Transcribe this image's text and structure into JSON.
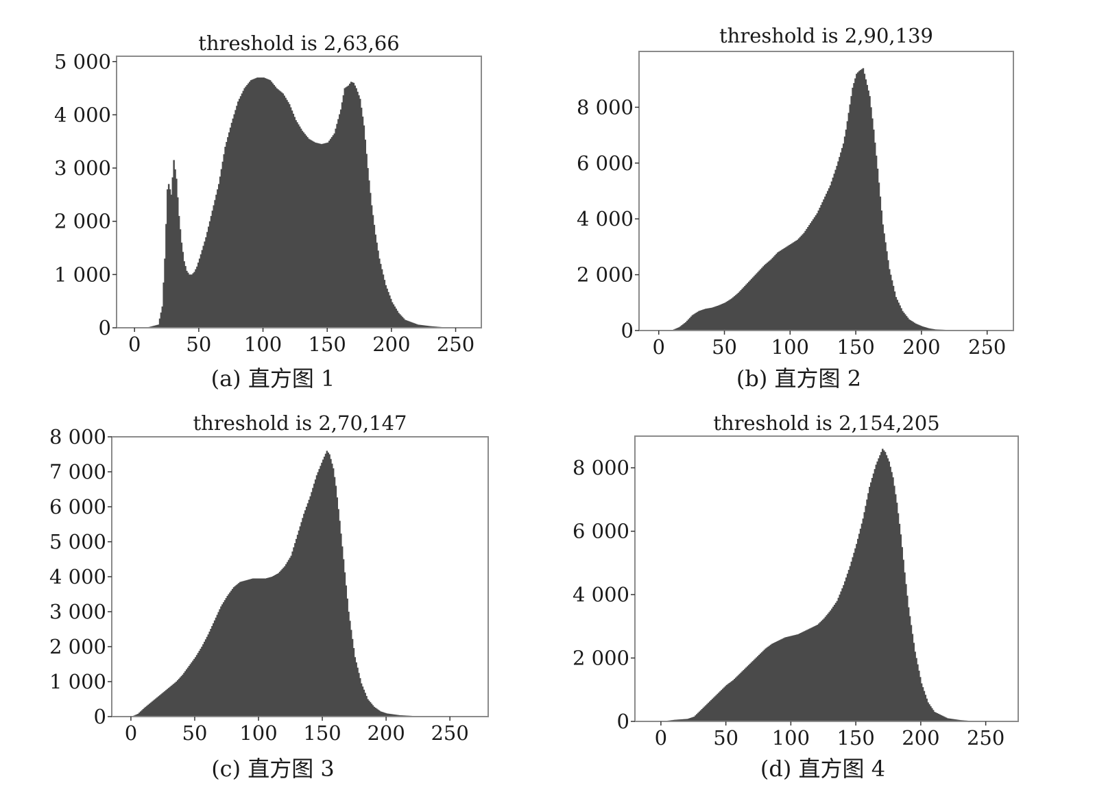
{
  "figure": {
    "bar_color": "#4a4a4a",
    "frame_color": "#8a8a8a"
  },
  "chart_data": [
    {
      "type": "bar",
      "title": "threshold is 2,63,66",
      "caption": "(a) 直方图 1",
      "xlabel": "",
      "ylabel": "",
      "xlim": [
        -14,
        270
      ],
      "ylim": [
        0,
        5100
      ],
      "xticks": [
        0,
        50,
        100,
        150,
        200,
        250
      ],
      "xtick_labels": [
        "0",
        "50",
        "100",
        "150",
        "200",
        "250"
      ],
      "yticks": [
        0,
        1000,
        2000,
        3000,
        4000,
        5000
      ],
      "ytick_labels": [
        "0",
        "1 000",
        "2 000",
        "3 000",
        "4 000",
        "5 000"
      ],
      "grid": false,
      "legend": "none",
      "bin_width": 1,
      "x": [
        0,
        10,
        18,
        21,
        23,
        25,
        26,
        28,
        30,
        32,
        34,
        36,
        38,
        40,
        42,
        44,
        46,
        48,
        50,
        55,
        60,
        65,
        70,
        75,
        80,
        85,
        90,
        95,
        100,
        105,
        110,
        115,
        120,
        125,
        130,
        135,
        140,
        145,
        150,
        155,
        160,
        163,
        166,
        168,
        170,
        172,
        175,
        178,
        181,
        184,
        187,
        190,
        195,
        200,
        205,
        210,
        220,
        230,
        240,
        250,
        255
      ],
      "values": [
        0,
        10,
        60,
        400,
        1300,
        2600,
        2700,
        2500,
        3150,
        2800,
        2100,
        1600,
        1250,
        1070,
        1000,
        1000,
        1050,
        1150,
        1300,
        1700,
        2200,
        2700,
        3400,
        3850,
        4250,
        4500,
        4650,
        4700,
        4700,
        4650,
        4500,
        4400,
        4200,
        3900,
        3700,
        3550,
        3480,
        3450,
        3480,
        3650,
        4100,
        4500,
        4550,
        4620,
        4600,
        4500,
        4300,
        3800,
        3000,
        2300,
        1750,
        1300,
        800,
        480,
        280,
        150,
        60,
        30,
        10,
        5,
        0
      ]
    },
    {
      "type": "bar",
      "title": "threshold is 2,90,139",
      "caption": "(b) 直方图 2",
      "xlabel": "",
      "ylabel": "",
      "xlim": [
        -15,
        270
      ],
      "ylim": [
        0,
        10000
      ],
      "xticks": [
        0,
        50,
        100,
        150,
        200,
        250
      ],
      "xtick_labels": [
        "0",
        "50",
        "100",
        "150",
        "200",
        "250"
      ],
      "yticks": [
        0,
        2000,
        4000,
        6000,
        8000
      ],
      "ytick_labels": [
        "0",
        "2 000",
        "4 000",
        "6 000",
        "8 000"
      ],
      "grid": false,
      "legend": "none",
      "bin_width": 1,
      "x": [
        0,
        10,
        15,
        20,
        25,
        30,
        35,
        40,
        45,
        50,
        55,
        60,
        65,
        70,
        75,
        80,
        85,
        90,
        95,
        100,
        105,
        110,
        115,
        120,
        125,
        130,
        135,
        140,
        142,
        145,
        147,
        150,
        152,
        155,
        157,
        160,
        163,
        166,
        170,
        175,
        180,
        185,
        190,
        195,
        200,
        205,
        210,
        220,
        230,
        240,
        255
      ],
      "values": [
        0,
        20,
        120,
        300,
        550,
        700,
        780,
        820,
        900,
        1000,
        1150,
        1350,
        1600,
        1850,
        2100,
        2350,
        2550,
        2800,
        2950,
        3100,
        3250,
        3500,
        3850,
        4200,
        4700,
        5200,
        5900,
        6700,
        7200,
        8100,
        8700,
        9200,
        9300,
        9400,
        9000,
        8400,
        7200,
        5800,
        3800,
        2200,
        1200,
        700,
        400,
        250,
        150,
        80,
        40,
        20,
        10,
        0,
        0
      ]
    },
    {
      "type": "bar",
      "title": "threshold is 2,70,147",
      "caption": "(c) 直方图 3",
      "xlabel": "",
      "ylabel": "",
      "xlim": [
        -15,
        280
      ],
      "ylim": [
        0,
        8000
      ],
      "xticks": [
        0,
        50,
        100,
        150,
        200,
        250
      ],
      "xtick_labels": [
        "0",
        "50",
        "100",
        "150",
        "200",
        "250"
      ],
      "yticks": [
        0,
        1000,
        2000,
        3000,
        4000,
        5000,
        6000,
        7000,
        8000
      ],
      "ytick_labels": [
        "0",
        "1 000",
        "2 000",
        "3 000",
        "4 000",
        "5 000",
        "6 000",
        "7 000",
        "8 000"
      ],
      "grid": false,
      "legend": "none",
      "bin_width": 1,
      "x": [
        0,
        5,
        10,
        15,
        20,
        25,
        30,
        35,
        40,
        45,
        50,
        55,
        60,
        65,
        70,
        75,
        80,
        85,
        90,
        95,
        100,
        105,
        110,
        115,
        120,
        125,
        130,
        135,
        140,
        145,
        150,
        153,
        155,
        158,
        160,
        163,
        166,
        170,
        175,
        180,
        185,
        190,
        195,
        200,
        210,
        220,
        230,
        240,
        255
      ],
      "values": [
        0,
        80,
        250,
        400,
        550,
        700,
        850,
        1000,
        1200,
        1450,
        1700,
        2000,
        2350,
        2750,
        3150,
        3450,
        3700,
        3850,
        3900,
        3950,
        3950,
        3950,
        4000,
        4100,
        4300,
        4600,
        5200,
        5800,
        6300,
        6900,
        7350,
        7600,
        7500,
        7100,
        6600,
        5600,
        4500,
        3000,
        1700,
        950,
        500,
        280,
        150,
        90,
        40,
        20,
        10,
        5,
        0
      ]
    },
    {
      "type": "bar",
      "title": "threshold is 2,154,205",
      "caption": "(d) 直方图 4",
      "xlabel": "",
      "ylabel": "",
      "xlim": [
        -20,
        275
      ],
      "ylim": [
        0,
        9000
      ],
      "xticks": [
        0,
        50,
        100,
        150,
        200,
        250
      ],
      "xtick_labels": [
        "0",
        "50",
        "100",
        "150",
        "200",
        "250"
      ],
      "yticks": [
        0,
        2000,
        4000,
        6000,
        8000
      ],
      "ytick_labels": [
        "0",
        "2 000",
        "4 000",
        "6 000",
        "8 000"
      ],
      "grid": false,
      "legend": "none",
      "bin_width": 1,
      "x": [
        0,
        10,
        20,
        25,
        30,
        35,
        40,
        45,
        50,
        55,
        60,
        65,
        70,
        75,
        80,
        85,
        90,
        95,
        100,
        105,
        110,
        115,
        120,
        125,
        130,
        135,
        140,
        145,
        150,
        155,
        160,
        165,
        168,
        170,
        172,
        175,
        178,
        181,
        184,
        187,
        190,
        195,
        200,
        205,
        210,
        220,
        230,
        240,
        255
      ],
      "values": [
        0,
        50,
        80,
        150,
        350,
        550,
        750,
        950,
        1150,
        1300,
        1500,
        1700,
        1900,
        2100,
        2300,
        2450,
        2550,
        2650,
        2700,
        2750,
        2850,
        2950,
        3050,
        3250,
        3500,
        3800,
        4300,
        4900,
        5600,
        6400,
        7400,
        8100,
        8400,
        8600,
        8500,
        8200,
        7700,
        6900,
        5900,
        4700,
        3600,
        2200,
        1200,
        600,
        300,
        100,
        40,
        10,
        0
      ]
    }
  ]
}
